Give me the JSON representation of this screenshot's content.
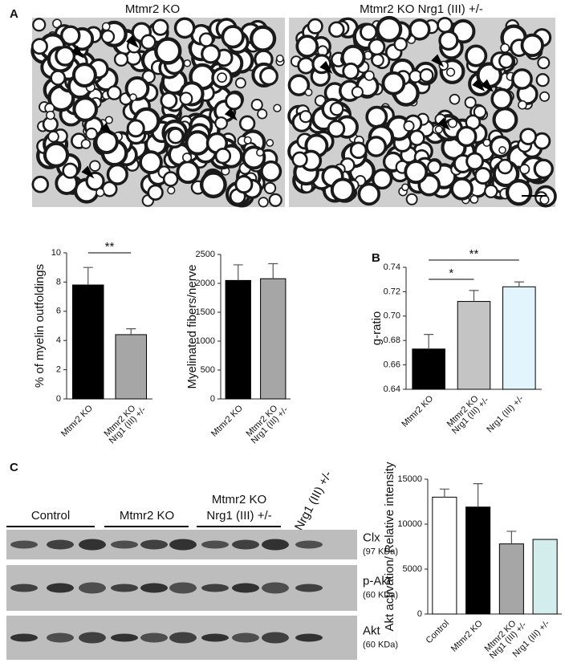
{
  "figure": {
    "panels": [
      "A",
      "B",
      "C"
    ],
    "micrographs": [
      "Mtmr2 KO",
      "Mtmr2 KO Nrg1 (III) +/-"
    ]
  },
  "blot": {
    "groups": [
      [
        "Control"
      ],
      [
        "Mtmr2 KO"
      ],
      [
        "Mtmr2 KO",
        "Nrg1 (III) +/-"
      ],
      [
        "Nrg1 (III) +/-"
      ]
    ],
    "rows": [
      {
        "name": "Clx",
        "size": "(97 KDa)"
      },
      {
        "name": "p-Akt",
        "size": "(60 KDa)"
      },
      {
        "name": "Akt",
        "size": "(60 KDa)"
      }
    ]
  },
  "chart_data": [
    {
      "type": "bar",
      "y_label": "% of myelin outfoldings",
      "categories": [
        [
          "Mtmr2 KO"
        ],
        [
          "Mtmr2 KO",
          "Nrg1 (III) +/-"
        ]
      ],
      "values": [
        7.8,
        4.4
      ],
      "errors": [
        1.2,
        0.4
      ],
      "colors": [
        "#000000",
        "#a6a6a6"
      ],
      "ylim": [
        0,
        10
      ],
      "yticks": [
        0,
        2,
        4,
        6,
        8,
        10
      ],
      "significance": [
        {
          "label": "**",
          "between": [
            0,
            1
          ]
        }
      ]
    },
    {
      "type": "bar",
      "y_label": "Myelinated fibers/nerve",
      "categories": [
        [
          "Mtmr2 KO"
        ],
        [
          "Mtmr2 KO",
          "Nrg1 (III) +/-"
        ]
      ],
      "values": [
        2050,
        2080
      ],
      "errors": [
        270,
        260
      ],
      "colors": [
        "#000000",
        "#a6a6a6"
      ],
      "ylim": [
        0,
        2500
      ],
      "yticks": [
        0,
        500,
        1000,
        1500,
        2000,
        2500
      ]
    },
    {
      "type": "bar",
      "y_label": "g-ratio",
      "categories": [
        [
          "Mtmr2 KO"
        ],
        [
          "Mtmr2 KO",
          "Nrg1 (III) +/-"
        ],
        [
          "Nrg1 (III) +/-"
        ]
      ],
      "values": [
        0.673,
        0.712,
        0.724
      ],
      "errors": [
        0.012,
        0.009,
        0.004
      ],
      "colors": [
        "#000000",
        "#c4c4c4",
        "#e2f5fd"
      ],
      "ylim": [
        0.64,
        0.74
      ],
      "yticks": [
        {
          "value": 0.64,
          "label": "0.64"
        },
        {
          "value": 0.66,
          "label": "0.66"
        },
        {
          "value": 0.68,
          "label": "0.68"
        },
        {
          "value": 0.7,
          "label": "0.70"
        },
        {
          "value": 0.72,
          "label": "0.72"
        },
        {
          "value": 0.74,
          "label": "0.74"
        }
      ],
      "significance": [
        {
          "label": "*",
          "between": [
            0,
            1
          ]
        },
        {
          "label": "**",
          "between": [
            0,
            2
          ]
        }
      ]
    },
    {
      "type": "bar",
      "y_label": "Akt activation/ Relative intensity",
      "categories": [
        [
          "Control"
        ],
        [
          "Mtmr2 KO"
        ],
        [
          "Mtmr2 KO",
          "Nrg1 (III) +/-"
        ],
        [
          "Nrg1 (III) +/-"
        ]
      ],
      "values": [
        13000,
        11900,
        7800,
        8300
      ],
      "errors": [
        900,
        2600,
        1400,
        null
      ],
      "colors": [
        "#ffffff",
        "#000000",
        "#a6a6a6",
        "#d3ecec"
      ],
      "ylim": [
        0,
        15000
      ],
      "yticks": [
        0,
        5000,
        10000,
        15000
      ]
    }
  ]
}
